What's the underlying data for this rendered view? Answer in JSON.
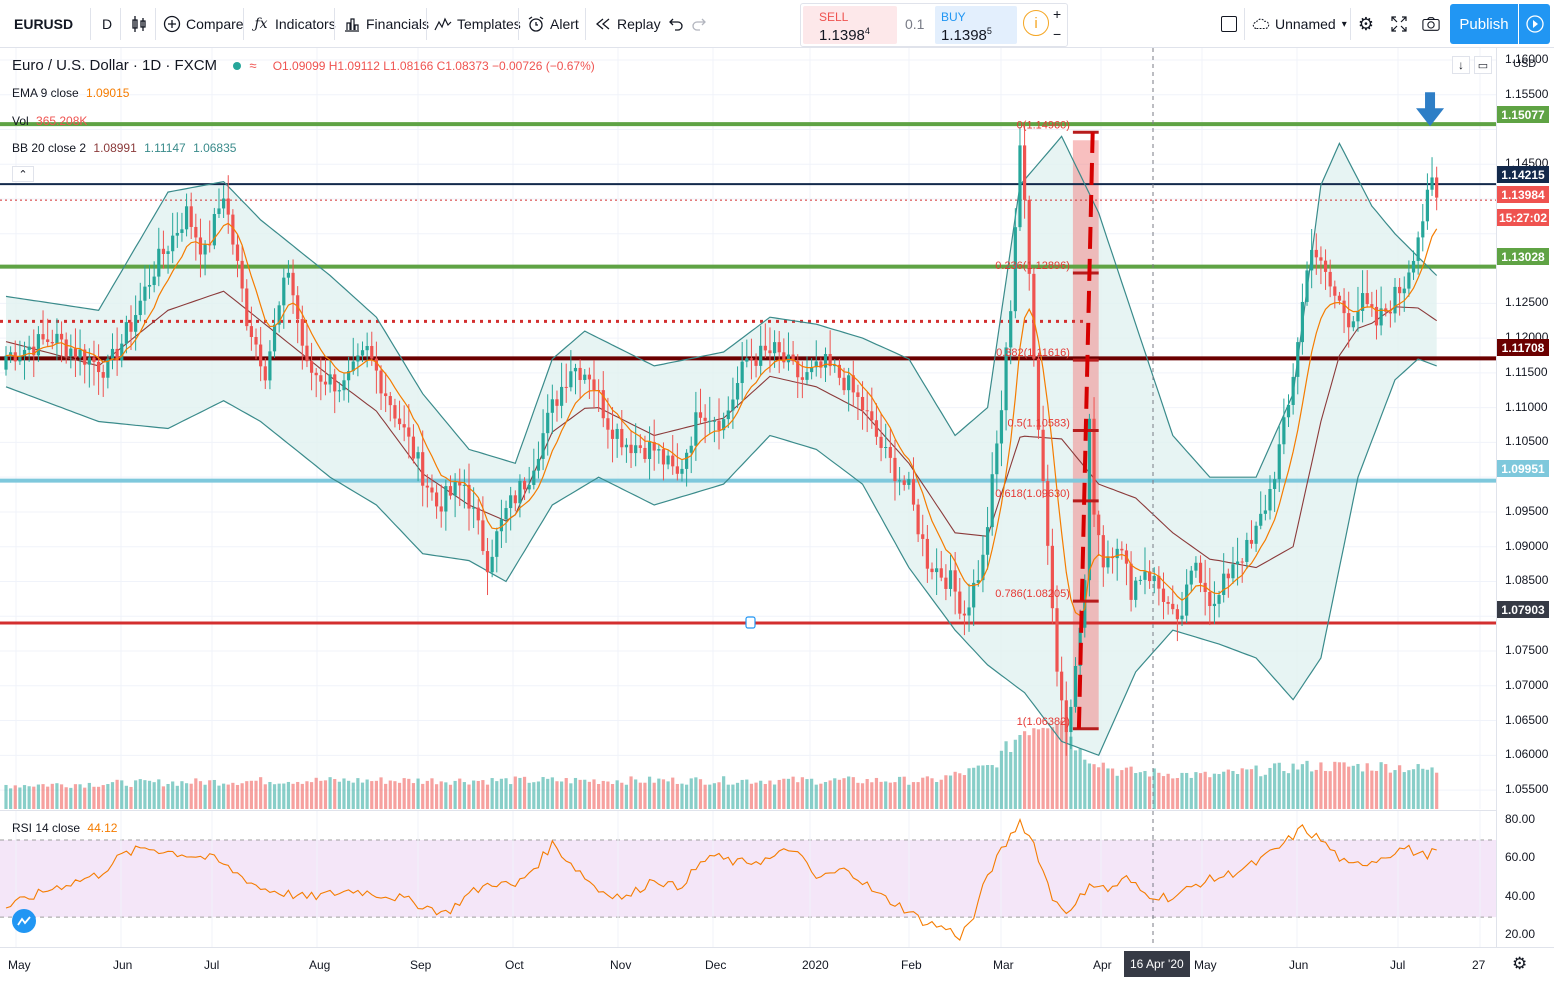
{
  "toolbar": {
    "symbol": "EURUSD",
    "interval": "D",
    "compare": "Compare",
    "indicators": "Indicators",
    "financials": "Financials",
    "templates": "Templates",
    "alert": "Alert",
    "replay": "Replay",
    "sell_label": "SELL",
    "sell_price": "1.1398",
    "sell_sup": "4",
    "spread": "0.1",
    "buy_label": "BUY",
    "buy_price": "1.1398",
    "buy_sup": "5",
    "layout_name": "Unnamed",
    "publish": "Publish",
    "plus": "+",
    "minus": "−"
  },
  "legend": {
    "title": "Euro / U.S. Dollar · 1D · FXCM",
    "ohlc": "O1.09099 H1.09112 L1.08166 C1.08373 −0.00726 (−0.67%)",
    "ema_label": "EMA 9 close",
    "ema_value": "1.09015",
    "vol_label": "Vol",
    "vol_value": "365.208K",
    "bb_label": "BB 20 close 2",
    "bb_basis": "1.08991",
    "bb_upper": "1.11147",
    "bb_lower": "1.06835",
    "rsi_label": "RSI 14 close",
    "rsi_value": "44.12"
  },
  "colors": {
    "up": "#26a69a",
    "down": "#ef5350",
    "ema": "#f57c00",
    "bb": "#3a8b8b",
    "bb_basis": "#8b3a3a",
    "bb_fill": "#e1f1f0",
    "green_line": "#5fa344",
    "navy_line": "#13294b",
    "maroon_line": "#6b0000",
    "cyan_line": "#7ec8dc",
    "red_line": "#d32f2f",
    "rsi_line": "#f57c00",
    "rsi_band": "#f3e3f7",
    "fib": "#e53935",
    "arrow": "#2e7ec6"
  },
  "price_axis": {
    "currency": "USD",
    "ticks": [
      "1.16000",
      "1.15500",
      "1.14500",
      "1.12500",
      "1.12000",
      "1.11500",
      "1.11000",
      "1.10500",
      "1.09500",
      "1.09000",
      "1.08500",
      "1.07500",
      "1.07000",
      "1.06500",
      "1.06000",
      "1.05500"
    ],
    "badges": [
      {
        "label": "1.15077",
        "color": "#5fa344"
      },
      {
        "label": "1.14215",
        "color": "#13294b"
      },
      {
        "label": "1.13984",
        "color": "#ef5350"
      },
      {
        "label": "15:27:02",
        "color": "#ef5350"
      },
      {
        "label": "1.13028",
        "color": "#5fa344"
      },
      {
        "label": "1.11708",
        "color": "#6b0000"
      },
      {
        "label": "1.09951",
        "color": "#7ec8dc"
      },
      {
        "label": "1.07903",
        "color": "#363a45"
      }
    ]
  },
  "rsi_axis": {
    "ticks": [
      "80.00",
      "60.00",
      "40.00",
      "20.00"
    ]
  },
  "time_axis": {
    "labels": [
      "May",
      "Jun",
      "Jul",
      "Aug",
      "Sep",
      "Oct",
      "Nov",
      "Dec",
      "2020",
      "Feb",
      "Mar",
      "Apr",
      "May",
      "Jun",
      "Jul",
      "27"
    ],
    "cursor": "16 Apr '20"
  },
  "fib_labels": [
    "0(1.14960)",
    "0.236(1.12896)",
    "0.382(1.11616)",
    "0.5(1.10583)",
    "0.618(1.09630)",
    "0.786(1.08205)",
    "1(1.06382)"
  ],
  "chart_data": {
    "type": "candlestick",
    "title": "Euro / U.S. Dollar · 1D · FXCM",
    "ylim": [
      1.053,
      1.161
    ],
    "rsi_ylim": [
      14,
      85
    ],
    "months": [
      "May",
      "Jun",
      "Jul",
      "Aug",
      "Sep",
      "Oct",
      "Nov",
      "Dec",
      "2020",
      "Feb",
      "Mar",
      "Apr",
      "May",
      "Jun",
      "Jul",
      "27"
    ],
    "close_path": [
      [
        0,
        1.1175
      ],
      [
        10,
        1.12
      ],
      [
        22,
        1.1155
      ],
      [
        27,
        1.122
      ],
      [
        32,
        1.13
      ],
      [
        39,
        1.138
      ],
      [
        43,
        1.132
      ],
      [
        47,
        1.141
      ],
      [
        52,
        1.123
      ],
      [
        56,
        1.1155
      ],
      [
        61,
        1.13
      ],
      [
        65,
        1.1155
      ],
      [
        73,
        1.113
      ],
      [
        78,
        1.118
      ],
      [
        85,
        1.108
      ],
      [
        89,
        1.102
      ],
      [
        93,
        1.096
      ],
      [
        99,
        1.099
      ],
      [
        104,
        1.088
      ],
      [
        108,
        1.095
      ],
      [
        113,
        1.1005
      ],
      [
        118,
        1.11
      ],
      [
        122,
        1.116
      ],
      [
        126,
        1.115
      ],
      [
        130,
        1.108
      ],
      [
        134,
        1.105
      ],
      [
        140,
        1.104
      ],
      [
        145,
        1.1
      ],
      [
        150,
        1.11
      ],
      [
        155,
        1.108
      ],
      [
        160,
        1.117
      ],
      [
        166,
        1.118
      ],
      [
        172,
        1.114
      ],
      [
        177,
        1.116
      ],
      [
        181,
        1.114
      ],
      [
        185,
        1.11
      ],
      [
        190,
        1.103
      ],
      [
        195,
        1.098
      ],
      [
        199,
        1.088
      ],
      [
        204,
        1.085
      ],
      [
        207,
        1.0805
      ],
      [
        211,
        1.088
      ],
      [
        213,
        1.099
      ],
      [
        215,
        1.11
      ],
      [
        217,
        1.125
      ],
      [
        219,
        1.148
      ],
      [
        221,
        1.129
      ],
      [
        223,
        1.108
      ],
      [
        225,
        1.091
      ],
      [
        227,
        1.072
      ],
      [
        229,
        1.065
      ],
      [
        231,
        1.072
      ],
      [
        233,
        1.085
      ],
      [
        234,
        1.107
      ],
      [
        235,
        1.096
      ],
      [
        237,
        1.088
      ],
      [
        240,
        1.091
      ],
      [
        243,
        1.084
      ],
      [
        246,
        1.087
      ],
      [
        250,
        1.083
      ],
      [
        253,
        1.078
      ],
      [
        257,
        1.088
      ],
      [
        261,
        1.081
      ],
      [
        265,
        1.088
      ],
      [
        269,
        1.09
      ],
      [
        273,
        1.098
      ],
      [
        277,
        1.11
      ],
      [
        280,
        1.125
      ],
      [
        282,
        1.134
      ],
      [
        284,
        1.13
      ],
      [
        287,
        1.126
      ],
      [
        290,
        1.123
      ],
      [
        293,
        1.125
      ],
      [
        296,
        1.122
      ],
      [
        299,
        1.125
      ],
      [
        302,
        1.128
      ],
      [
        305,
        1.135
      ],
      [
        308,
        1.142
      ],
      [
        309,
        1.1398
      ]
    ],
    "ema_offset": 0.002,
    "volume_profile": [
      [
        0,
        0.25
      ],
      [
        60,
        0.3
      ],
      [
        120,
        0.3
      ],
      [
        180,
        0.3
      ],
      [
        200,
        0.3
      ],
      [
        213,
        0.45
      ],
      [
        220,
        0.85
      ],
      [
        228,
        1.0
      ],
      [
        232,
        0.6
      ],
      [
        240,
        0.4
      ],
      [
        260,
        0.35
      ],
      [
        280,
        0.45
      ],
      [
        300,
        0.45
      ],
      [
        309,
        0.4
      ]
    ],
    "rsi": [
      [
        0,
        35
      ],
      [
        10,
        45
      ],
      [
        20,
        52
      ],
      [
        25,
        62
      ],
      [
        30,
        66
      ],
      [
        40,
        62
      ],
      [
        45,
        60
      ],
      [
        55,
        45
      ],
      [
        65,
        40
      ],
      [
        75,
        44
      ],
      [
        85,
        40
      ],
      [
        90,
        36
      ],
      [
        95,
        32
      ],
      [
        100,
        42
      ],
      [
        105,
        48
      ],
      [
        110,
        46
      ],
      [
        115,
        58
      ],
      [
        118,
        68
      ],
      [
        122,
        58
      ],
      [
        128,
        44
      ],
      [
        134,
        40
      ],
      [
        140,
        50
      ],
      [
        145,
        45
      ],
      [
        152,
        62
      ],
      [
        158,
        58
      ],
      [
        165,
        60
      ],
      [
        170,
        66
      ],
      [
        175,
        50
      ],
      [
        182,
        55
      ],
      [
        188,
        42
      ],
      [
        193,
        36
      ],
      [
        198,
        28
      ],
      [
        203,
        24
      ],
      [
        206,
        20
      ],
      [
        209,
        30
      ],
      [
        212,
        52
      ],
      [
        216,
        68
      ],
      [
        219,
        80
      ],
      [
        222,
        68
      ],
      [
        226,
        40
      ],
      [
        230,
        32
      ],
      [
        234,
        48
      ],
      [
        238,
        44
      ],
      [
        242,
        50
      ],
      [
        246,
        42
      ],
      [
        252,
        40
      ],
      [
        258,
        48
      ],
      [
        264,
        52
      ],
      [
        270,
        58
      ],
      [
        275,
        66
      ],
      [
        280,
        76
      ],
      [
        284,
        70
      ],
      [
        290,
        56
      ],
      [
        296,
        60
      ],
      [
        302,
        66
      ],
      [
        306,
        62
      ],
      [
        309,
        64
      ]
    ],
    "bb_upper_path": [
      [
        0,
        1.126
      ],
      [
        20,
        1.124
      ],
      [
        35,
        1.141
      ],
      [
        47,
        1.1425
      ],
      [
        55,
        1.137
      ],
      [
        70,
        1.129
      ],
      [
        80,
        1.123
      ],
      [
        90,
        1.112
      ],
      [
        100,
        1.104
      ],
      [
        110,
        1.102
      ],
      [
        118,
        1.117
      ],
      [
        125,
        1.121
      ],
      [
        140,
        1.116
      ],
      [
        155,
        1.118
      ],
      [
        165,
        1.123
      ],
      [
        175,
        1.122
      ],
      [
        185,
        1.12
      ],
      [
        195,
        1.117
      ],
      [
        205,
        1.106
      ],
      [
        212,
        1.11
      ],
      [
        219,
        1.142
      ],
      [
        228,
        1.149
      ],
      [
        236,
        1.138
      ],
      [
        244,
        1.122
      ],
      [
        252,
        1.106
      ],
      [
        260,
        1.1
      ],
      [
        270,
        1.1
      ],
      [
        278,
        1.112
      ],
      [
        284,
        1.142
      ],
      [
        288,
        1.148
      ],
      [
        295,
        1.139
      ],
      [
        300,
        1.135
      ],
      [
        309,
        1.129
      ]
    ],
    "bb_lower_path": [
      [
        0,
        1.113
      ],
      [
        20,
        1.108
      ],
      [
        35,
        1.107
      ],
      [
        47,
        1.111
      ],
      [
        55,
        1.108
      ],
      [
        70,
        1.1
      ],
      [
        80,
        1.096
      ],
      [
        90,
        1.089
      ],
      [
        100,
        1.088
      ],
      [
        108,
        1.085
      ],
      [
        118,
        1.096
      ],
      [
        128,
        1.1
      ],
      [
        140,
        1.096
      ],
      [
        155,
        1.099
      ],
      [
        165,
        1.106
      ],
      [
        175,
        1.104
      ],
      [
        185,
        1.099
      ],
      [
        195,
        1.087
      ],
      [
        205,
        1.078
      ],
      [
        212,
        1.073
      ],
      [
        220,
        1.069
      ],
      [
        228,
        1.062
      ],
      [
        236,
        1.06
      ],
      [
        244,
        1.072
      ],
      [
        252,
        1.078
      ],
      [
        262,
        1.076
      ],
      [
        270,
        1.074
      ],
      [
        278,
        1.068
      ],
      [
        284,
        1.074
      ],
      [
        292,
        1.1
      ],
      [
        300,
        1.114
      ],
      [
        305,
        1.117
      ],
      [
        309,
        1.116
      ]
    ],
    "hlines": [
      {
        "price": 1.15077,
        "color": "green",
        "style": "solid",
        "width": 4
      },
      {
        "price": 1.14215,
        "color": "navy",
        "style": "solid",
        "width": 2
      },
      {
        "price": 1.13984,
        "color": "red",
        "style": "dotted",
        "width": 1
      },
      {
        "price": 1.13028,
        "color": "green",
        "style": "solid",
        "width": 4
      },
      {
        "price": 1.1224,
        "color": "red",
        "style": "dotted",
        "width": 3
      },
      {
        "price": 1.11708,
        "color": "maroon",
        "style": "solid",
        "width": 4
      },
      {
        "price": 1.09951,
        "color": "cyan",
        "style": "solid",
        "width": 4
      },
      {
        "price": 1.07903,
        "color": "red",
        "style": "solid",
        "width": 3
      }
    ],
    "fib_range": {
      "x_start_day": 230,
      "x_end_day": 236,
      "high": 1.1496,
      "low": 1.06382
    }
  }
}
